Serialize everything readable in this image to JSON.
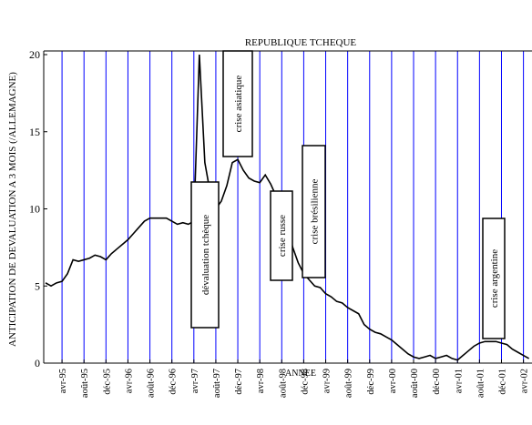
{
  "chart_data": {
    "type": "line",
    "title": "REPUBLIQUE TCHEQUE",
    "y_label": "ANTICIPATION DE DEVALUATION A 3 MOIS (/ALLEMAGNE)",
    "x_label": "ANNEE",
    "categories": [
      null,
      null,
      null,
      "avr-95",
      null,
      null,
      null,
      "août-95",
      null,
      null,
      null,
      "déc-95",
      null,
      null,
      null,
      "avr-96",
      null,
      null,
      null,
      "août-96",
      null,
      null,
      null,
      "déc-96",
      null,
      null,
      null,
      "avr-97",
      null,
      null,
      null,
      "août-97",
      null,
      null,
      null,
      "déc-97",
      null,
      null,
      null,
      "avr-98",
      null,
      null,
      null,
      "août-98",
      null,
      null,
      null,
      "déc-98",
      null,
      null,
      null,
      "avr-99",
      null,
      null,
      null,
      "août-99",
      null,
      null,
      null,
      "déc-99",
      null,
      null,
      null,
      "avr-00",
      null,
      null,
      null,
      "août-00",
      null,
      null,
      null,
      "déc-00",
      null,
      null,
      null,
      "avr-01",
      null,
      null,
      null,
      "août-01",
      null,
      null,
      null,
      "déc-01",
      null,
      null,
      null,
      "avr-02",
      null
    ],
    "series": [
      {
        "color": "#000000",
        "values": [
          5.2,
          5.0,
          5.2,
          5.3,
          5.8,
          6.7,
          6.6,
          6.7,
          6.8,
          7.0,
          6.9,
          6.7,
          7.1,
          7.4,
          7.7,
          8.0,
          8.4,
          8.8,
          9.2,
          9.4,
          9.4,
          9.4,
          9.4,
          9.2,
          9.0,
          9.1,
          9.0,
          9.2,
          20.0,
          13.0,
          11.0,
          10.0,
          10.5,
          11.5,
          13.0,
          13.2,
          12.5,
          12.0,
          11.8,
          11.7,
          12.2,
          11.6,
          10.8,
          10.2,
          9.0,
          7.5,
          6.5,
          5.8,
          5.4,
          5.0,
          4.9,
          4.5,
          4.3,
          4.0,
          3.9,
          3.6,
          3.4,
          3.2,
          2.5,
          2.2,
          2.0,
          1.9,
          1.7,
          1.5,
          1.2,
          0.9,
          0.6,
          0.4,
          0.3,
          0.4,
          0.5,
          0.3,
          0.4,
          0.5,
          0.3,
          0.2,
          0.5,
          0.8,
          1.1,
          1.3,
          1.4,
          1.4,
          1.4,
          1.3,
          1.2,
          0.9,
          0.7,
          0.5,
          0.3
        ]
      }
    ],
    "ylim": [
      0,
      20
    ],
    "yticks": [
      0,
      5,
      10,
      15,
      20
    ],
    "grid": true,
    "grid_color": "#0000ff",
    "annotations": [
      {
        "text": "dévaluation tchèque"
      },
      {
        "text": "crise asiatique"
      },
      {
        "text": "crise russe"
      },
      {
        "text": "crise brésilienne"
      },
      {
        "text": "crise argentine"
      }
    ]
  }
}
